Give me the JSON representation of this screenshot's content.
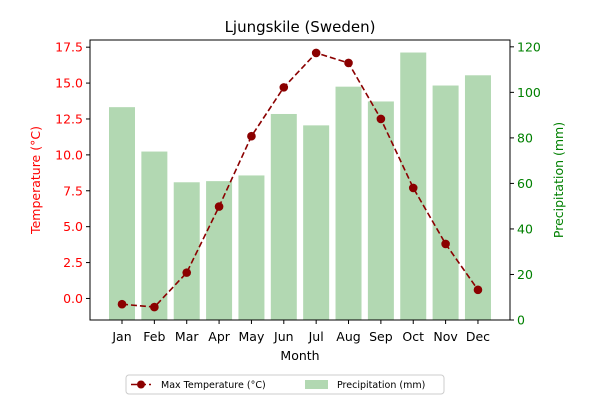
{
  "chart_data": {
    "type": "bar",
    "title": "Ljungskile (Sweden)",
    "xlabel": "Month",
    "ylabel_left": "Temperature (°C)",
    "ylabel_right": "Precipitation (mm)",
    "categories": [
      "Jan",
      "Feb",
      "Mar",
      "Apr",
      "May",
      "Jun",
      "Jul",
      "Aug",
      "Sep",
      "Oct",
      "Nov",
      "Dec"
    ],
    "series": [
      {
        "name": "Max Temperature (°C)",
        "type": "line",
        "axis": "left",
        "values": [
          -0.4,
          -0.6,
          1.8,
          6.4,
          11.3,
          14.7,
          17.1,
          16.4,
          12.5,
          7.7,
          3.8,
          0.6
        ]
      },
      {
        "name": "Precipitation (mm)",
        "type": "bar",
        "axis": "right",
        "values": [
          93.5,
          74,
          60.5,
          61,
          63.5,
          90.5,
          85.5,
          102.5,
          96,
          117.5,
          103,
          107.5
        ]
      }
    ],
    "ylim_left": [
      -1.5,
      18
    ],
    "ylim_right": [
      0,
      123
    ],
    "yticks_left": [
      "0.0",
      "2.5",
      "5.0",
      "7.5",
      "10.0",
      "12.5",
      "15.0",
      "17.5"
    ],
    "yticks_right": [
      "0",
      "20",
      "40",
      "60",
      "80",
      "100",
      "120"
    ],
    "grid": false,
    "legend_position": "bottom-center",
    "colors": {
      "temperature_line": "#8b0000",
      "precipitation_bar": "#b2d8b2",
      "left_axis": "#ff0000",
      "right_axis": "#008000"
    }
  }
}
